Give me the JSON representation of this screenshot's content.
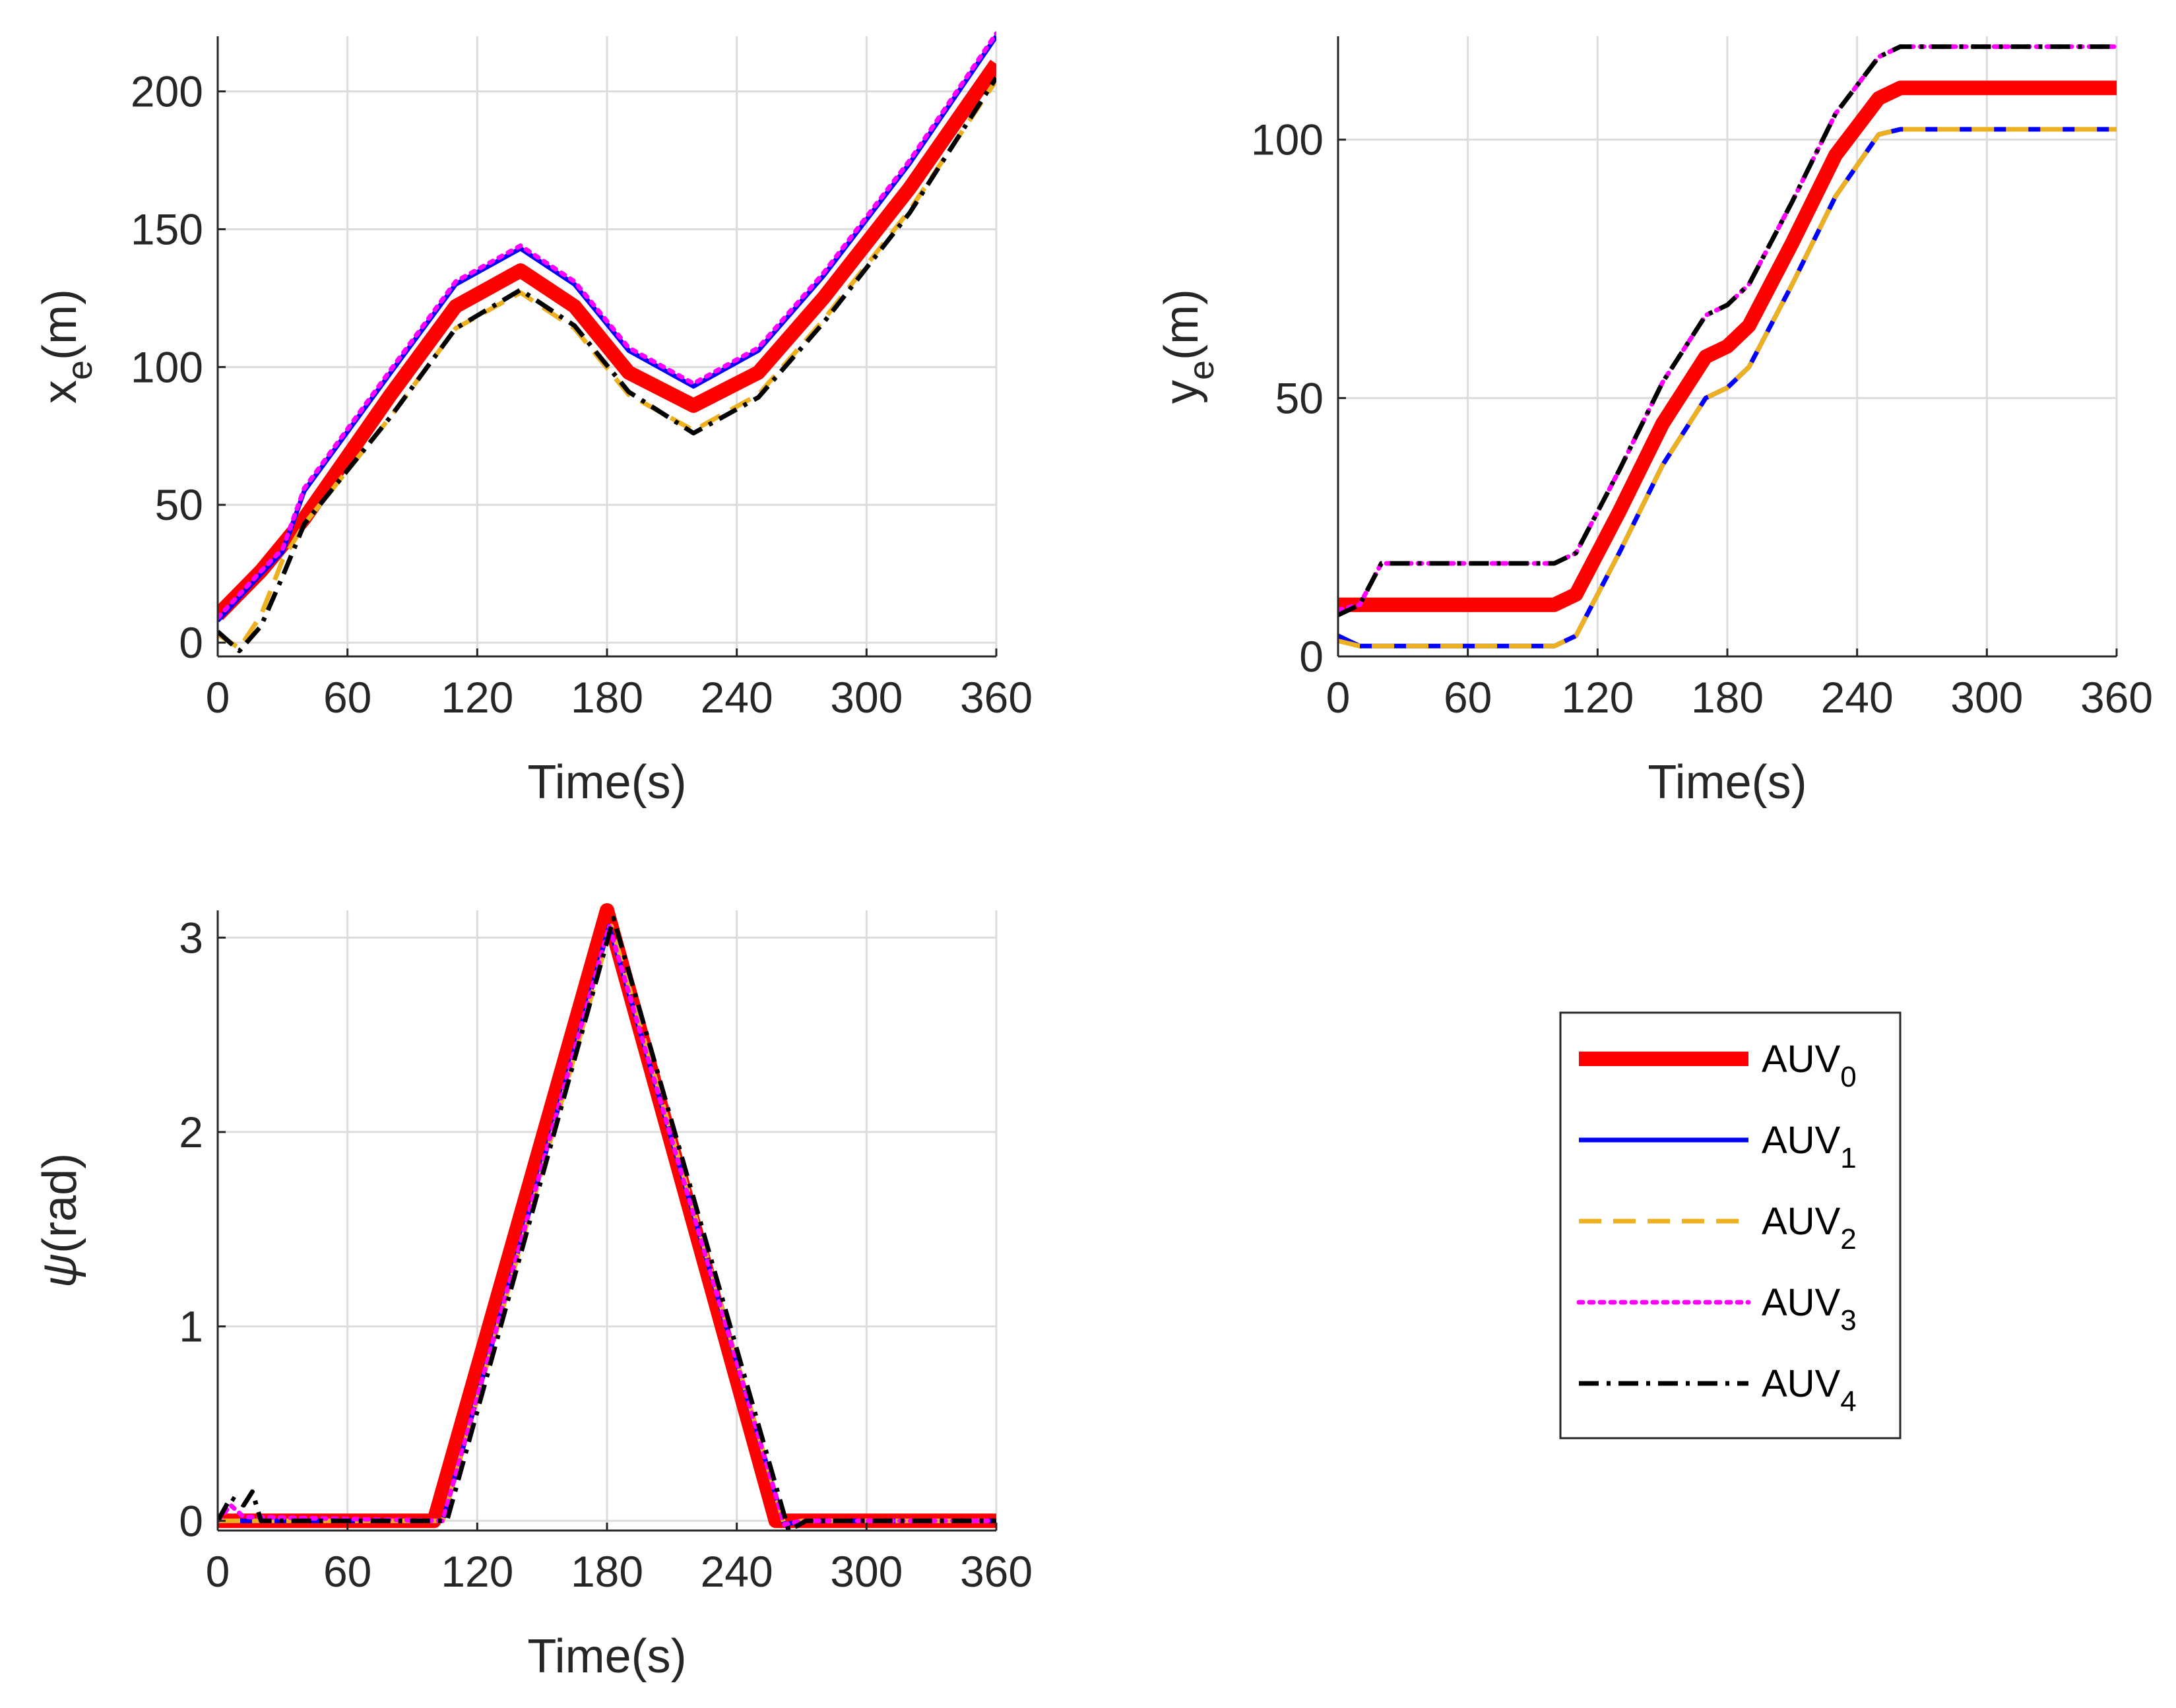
{
  "chart_data": [
    {
      "type": "line",
      "panel": "x-position",
      "xlabel": "Time(s)",
      "ylabel_base": "x",
      "ylabel_sub": "e",
      "ylabel_unit": "(m)",
      "xlim": [
        0,
        360
      ],
      "ylim": [
        -5,
        220
      ],
      "xticks": [
        0,
        60,
        120,
        180,
        240,
        300,
        360
      ],
      "yticks": [
        0,
        50,
        100,
        150,
        200
      ],
      "grid": true,
      "series": [
        {
          "name": "AUV0",
          "points": [
            [
              0,
              10
            ],
            [
              20,
              26
            ],
            [
              40,
              45
            ],
            [
              80,
              90
            ],
            [
              110,
              122
            ],
            [
              140,
              135
            ],
            [
              165,
              122
            ],
            [
              190,
              98
            ],
            [
              220,
              86
            ],
            [
              250,
              98
            ],
            [
              280,
              125
            ],
            [
              320,
              165
            ],
            [
              360,
              210
            ]
          ]
        },
        {
          "name": "AUV1",
          "points": [
            [
              0,
              8
            ],
            [
              20,
              25
            ],
            [
              30,
              33
            ],
            [
              40,
              55
            ],
            [
              80,
              98
            ],
            [
              110,
              130
            ],
            [
              140,
              143
            ],
            [
              165,
              130
            ],
            [
              190,
              106
            ],
            [
              220,
              93
            ],
            [
              250,
              106
            ],
            [
              280,
              133
            ],
            [
              320,
              174
            ],
            [
              360,
              220
            ]
          ]
        },
        {
          "name": "AUV2",
          "points": [
            [
              0,
              3
            ],
            [
              10,
              -2
            ],
            [
              20,
              10
            ],
            [
              30,
              30
            ],
            [
              40,
              43
            ],
            [
              80,
              82
            ],
            [
              110,
              114
            ],
            [
              140,
              127
            ],
            [
              165,
              114
            ],
            [
              190,
              90
            ],
            [
              220,
              77
            ],
            [
              250,
              90
            ],
            [
              280,
              117
            ],
            [
              320,
              157
            ],
            [
              360,
              204
            ]
          ]
        },
        {
          "name": "AUV3",
          "points": [
            [
              0,
              9
            ],
            [
              20,
              26
            ],
            [
              30,
              34
            ],
            [
              40,
              56
            ],
            [
              80,
              99
            ],
            [
              110,
              131
            ],
            [
              140,
              144
            ],
            [
              165,
              131
            ],
            [
              190,
              107
            ],
            [
              220,
              94
            ],
            [
              250,
              107
            ],
            [
              280,
              134
            ],
            [
              320,
              175
            ],
            [
              360,
              221
            ]
          ]
        },
        {
          "name": "AUV4",
          "points": [
            [
              0,
              4
            ],
            [
              10,
              -3
            ],
            [
              20,
              6
            ],
            [
              30,
              24
            ],
            [
              40,
              43
            ],
            [
              80,
              82
            ],
            [
              110,
              114
            ],
            [
              140,
              128
            ],
            [
              165,
              115
            ],
            [
              190,
              91
            ],
            [
              220,
              76
            ],
            [
              250,
              89
            ],
            [
              280,
              116
            ],
            [
              320,
              156
            ],
            [
              360,
              205
            ]
          ]
        }
      ]
    },
    {
      "type": "line",
      "panel": "y-position",
      "xlabel": "Time(s)",
      "ylabel_base": "y",
      "ylabel_sub": "e",
      "ylabel_unit": "(m)",
      "xlim": [
        0,
        360
      ],
      "ylim": [
        0,
        120
      ],
      "xticks": [
        0,
        60,
        120,
        180,
        240,
        300,
        360
      ],
      "yticks": [
        0,
        50,
        100
      ],
      "grid": true,
      "series": [
        {
          "name": "AUV0",
          "points": [
            [
              0,
              10
            ],
            [
              100,
              10
            ],
            [
              110,
              12
            ],
            [
              130,
              28
            ],
            [
              150,
              45
            ],
            [
              170,
              58
            ],
            [
              180,
              60
            ],
            [
              190,
              64
            ],
            [
              210,
              80
            ],
            [
              230,
              97
            ],
            [
              250,
              108
            ],
            [
              260,
              110
            ],
            [
              360,
              110
            ]
          ]
        },
        {
          "name": "AUV1",
          "points": [
            [
              0,
              4
            ],
            [
              10,
              2
            ],
            [
              100,
              2
            ],
            [
              110,
              4
            ],
            [
              130,
              20
            ],
            [
              150,
              37
            ],
            [
              170,
              50
            ],
            [
              180,
              52
            ],
            [
              190,
              56
            ],
            [
              210,
              72
            ],
            [
              230,
              89
            ],
            [
              250,
              101
            ],
            [
              260,
              102
            ],
            [
              360,
              102
            ]
          ]
        },
        {
          "name": "AUV2",
          "points": [
            [
              0,
              3
            ],
            [
              10,
              2
            ],
            [
              100,
              2
            ],
            [
              110,
              4
            ],
            [
              130,
              20
            ],
            [
              150,
              37
            ],
            [
              170,
              50
            ],
            [
              180,
              52
            ],
            [
              190,
              56
            ],
            [
              210,
              72
            ],
            [
              230,
              89
            ],
            [
              250,
              101
            ],
            [
              260,
              102
            ],
            [
              360,
              102
            ]
          ]
        },
        {
          "name": "AUV3",
          "points": [
            [
              0,
              9
            ],
            [
              10,
              10
            ],
            [
              20,
              18
            ],
            [
              100,
              18
            ],
            [
              110,
              20
            ],
            [
              130,
              36
            ],
            [
              150,
              53
            ],
            [
              170,
              66
            ],
            [
              180,
              68
            ],
            [
              190,
              72
            ],
            [
              210,
              88
            ],
            [
              230,
              105
            ],
            [
              250,
              116
            ],
            [
              260,
              118
            ],
            [
              360,
              118
            ]
          ]
        },
        {
          "name": "AUV4",
          "points": [
            [
              0,
              8
            ],
            [
              10,
              10
            ],
            [
              20,
              18
            ],
            [
              100,
              18
            ],
            [
              110,
              20
            ],
            [
              130,
              36
            ],
            [
              150,
              53
            ],
            [
              170,
              66
            ],
            [
              180,
              68
            ],
            [
              190,
              72
            ],
            [
              210,
              88
            ],
            [
              230,
              105
            ],
            [
              250,
              116
            ],
            [
              260,
              118
            ],
            [
              360,
              118
            ]
          ]
        }
      ]
    },
    {
      "type": "line",
      "panel": "heading",
      "xlabel": "Time(s)",
      "ylabel_base": "ψ",
      "ylabel_sub": "",
      "ylabel_unit": "(rad)",
      "xlim": [
        0,
        360
      ],
      "ylim": [
        -0.05,
        3.14
      ],
      "xticks": [
        0,
        60,
        120,
        180,
        240,
        300,
        360
      ],
      "yticks": [
        0,
        1,
        2,
        3
      ],
      "grid": true,
      "series": [
        {
          "name": "AUV0",
          "points": [
            [
              0,
              0
            ],
            [
              100,
              0
            ],
            [
              180,
              3.14
            ],
            [
              258,
              0
            ],
            [
              360,
              0
            ]
          ]
        },
        {
          "name": "AUV1",
          "points": [
            [
              0,
              0
            ],
            [
              104,
              0
            ],
            [
              181,
              3.06
            ],
            [
              262,
              -0.02
            ],
            [
              270,
              0
            ],
            [
              360,
              0
            ]
          ]
        },
        {
          "name": "AUV2",
          "points": [
            [
              0,
              0
            ],
            [
              104,
              0
            ],
            [
              182,
              3.06
            ],
            [
              262,
              -0.02
            ],
            [
              270,
              0
            ],
            [
              360,
              0
            ]
          ]
        },
        {
          "name": "AUV3",
          "points": [
            [
              0,
              0
            ],
            [
              6,
              0.08
            ],
            [
              12,
              0.02
            ],
            [
              104,
              0
            ],
            [
              181,
              3.06
            ],
            [
              262,
              -0.02
            ],
            [
              270,
              0
            ],
            [
              360,
              0
            ]
          ]
        },
        {
          "name": "AUV4",
          "points": [
            [
              0,
              0
            ],
            [
              6,
              0.12
            ],
            [
              12,
              0.08
            ],
            [
              16,
              0.15
            ],
            [
              20,
              0
            ],
            [
              106,
              0
            ],
            [
              183,
              3.1
            ],
            [
              264,
              -0.05
            ],
            [
              272,
              0
            ],
            [
              360,
              0
            ]
          ]
        }
      ]
    }
  ],
  "legend": [
    {
      "base": "AUV",
      "sub": "0",
      "color": "#ff0000",
      "style": "solid-thick"
    },
    {
      "base": "AUV",
      "sub": "1",
      "color": "#0000ff",
      "style": "solid"
    },
    {
      "base": "AUV",
      "sub": "2",
      "color": "#edb120",
      "style": "dashed"
    },
    {
      "base": "AUV",
      "sub": "3",
      "color": "#ff00ff",
      "style": "dotted"
    },
    {
      "base": "AUV",
      "sub": "4",
      "color": "#000000",
      "style": "dashdot"
    }
  ]
}
